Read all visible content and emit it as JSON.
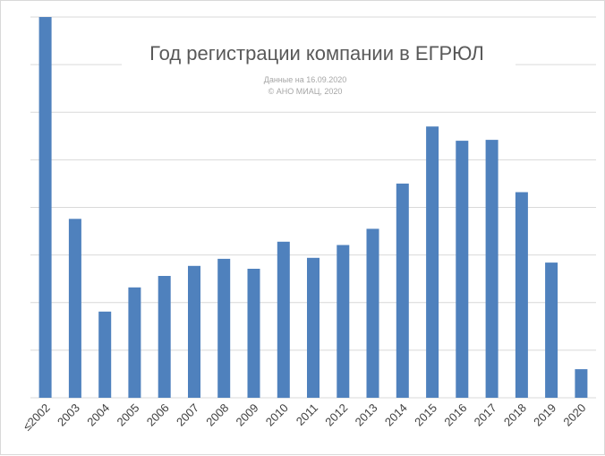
{
  "chart_data": {
    "type": "bar",
    "title": "Год регистрации компании в ЕГРЮЛ",
    "subtitle_lines": [
      "Данные на 16.09.2020",
      "© АНО МИАЦ, 2020"
    ],
    "categories": [
      "≤2002",
      "2003",
      "2004",
      "2005",
      "2006",
      "2007",
      "2008",
      "2009",
      "2010",
      "2011",
      "2012",
      "2013",
      "2014",
      "2015",
      "2016",
      "2017",
      "2018",
      "2019",
      "2020"
    ],
    "values": [
      8.0,
      3.76,
      1.81,
      2.32,
      2.56,
      2.77,
      2.92,
      2.71,
      3.28,
      2.94,
      3.21,
      3.55,
      4.5,
      5.7,
      5.4,
      5.42,
      4.32,
      2.84,
      0.6
    ],
    "ylim": [
      0,
      8
    ],
    "y_tick_count": 8,
    "y_tick_labels_shown": false,
    "grid": true,
    "bar_color": "#4f81bd",
    "grid_color": "#d9d9d9"
  }
}
